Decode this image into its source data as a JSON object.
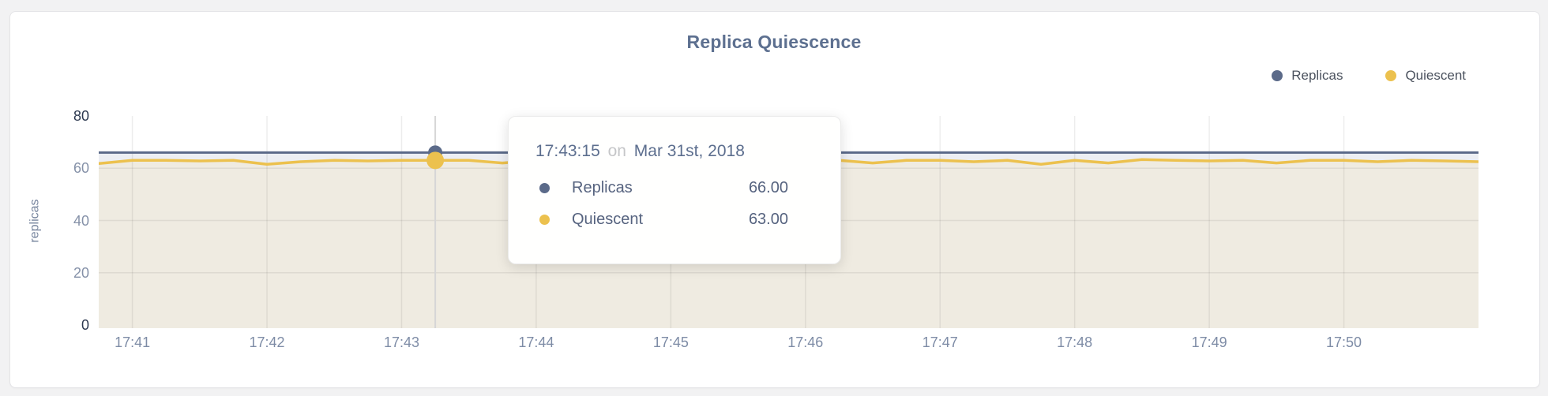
{
  "card": {
    "title": "Replica Quiescence"
  },
  "colors": {
    "replicas": "#5b6a89",
    "quiescent": "#ecc14e",
    "replicas_fill": "#eceef3",
    "quiescent_fill": "#efebe1",
    "grid": "rgba(0,0,0,0.07)",
    "crosshair": "#d6d6d6",
    "title": "#5d7090",
    "tick_normal": "#8591a8",
    "tick_extreme": "#2d3950"
  },
  "legend": {
    "items": [
      {
        "label": "Replicas",
        "color": "#5b6a89"
      },
      {
        "label": "Quiescent",
        "color": "#ecc14e"
      }
    ]
  },
  "axes": {
    "y_label": "replicas",
    "y_ticks": [
      0,
      20,
      40,
      60,
      80
    ],
    "x_ticks": [
      "17:41",
      "17:42",
      "17:43",
      "17:44",
      "17:45",
      "17:46",
      "17:47",
      "17:48",
      "17:49",
      "17:50"
    ]
  },
  "tooltip": {
    "time": "17:43:15",
    "connector": "on",
    "date": "Mar 31st, 2018",
    "rows": [
      {
        "label": "Replicas",
        "value": "66.00",
        "color": "#5b6a89"
      },
      {
        "label": "Quiescent",
        "value": "63.00",
        "color": "#ecc14e"
      }
    ]
  },
  "chart_data": {
    "type": "line",
    "title": "Replica Quiescence",
    "ylabel": "replicas",
    "ylim": [
      0,
      80
    ],
    "grid": true,
    "legend_position": "top-right",
    "x_tick_labels": [
      "17:41",
      "17:42",
      "17:43",
      "17:44",
      "17:45",
      "17:46",
      "17:47",
      "17:48",
      "17:49",
      "17:50"
    ],
    "x_times": [
      "17:40:45",
      "17:41:00",
      "17:41:15",
      "17:41:30",
      "17:41:45",
      "17:42:00",
      "17:42:15",
      "17:42:30",
      "17:42:45",
      "17:43:00",
      "17:43:15",
      "17:43:30",
      "17:43:45",
      "17:44:00",
      "17:44:15",
      "17:44:30",
      "17:44:45",
      "17:45:00",
      "17:45:15",
      "17:45:30",
      "17:45:45",
      "17:46:00",
      "17:46:15",
      "17:46:30",
      "17:46:45",
      "17:47:00",
      "17:47:15",
      "17:47:30",
      "17:47:45",
      "17:48:00",
      "17:48:15",
      "17:48:30",
      "17:48:45",
      "17:49:00",
      "17:49:15",
      "17:49:30",
      "17:49:45",
      "17:50:00",
      "17:50:15",
      "17:50:30",
      "17:50:45",
      "17:51:00"
    ],
    "hover_index": 10,
    "hover_time": "17:43:15",
    "hover_date": "Mar 31st, 2018",
    "series": [
      {
        "name": "Replicas",
        "color": "#5b6a89",
        "fill": "#eceef3",
        "hover_value": 66.0,
        "values": [
          66,
          66,
          66,
          66,
          66,
          66,
          66,
          66,
          66,
          66,
          66,
          66,
          66,
          66,
          66,
          66,
          66,
          66,
          66,
          66,
          66,
          66,
          66,
          66,
          66,
          66,
          66,
          66,
          66,
          66,
          66,
          66,
          66,
          66,
          66,
          66,
          66,
          66,
          66,
          66,
          66,
          66
        ]
      },
      {
        "name": "Quiescent",
        "color": "#ecc14e",
        "fill": "#efebe1",
        "hover_value": 63.0,
        "values": [
          61.8,
          63,
          63,
          62.8,
          63,
          61.5,
          62.5,
          63,
          62.8,
          63,
          63,
          63,
          62,
          63,
          63,
          62.8,
          63,
          61.5,
          62.5,
          63,
          63,
          62.8,
          63,
          62,
          63,
          63,
          62.5,
          63,
          61.5,
          63,
          62,
          63.3,
          63,
          62.8,
          63,
          62,
          63,
          63,
          62.5,
          63,
          62.8,
          62.5
        ]
      }
    ]
  }
}
